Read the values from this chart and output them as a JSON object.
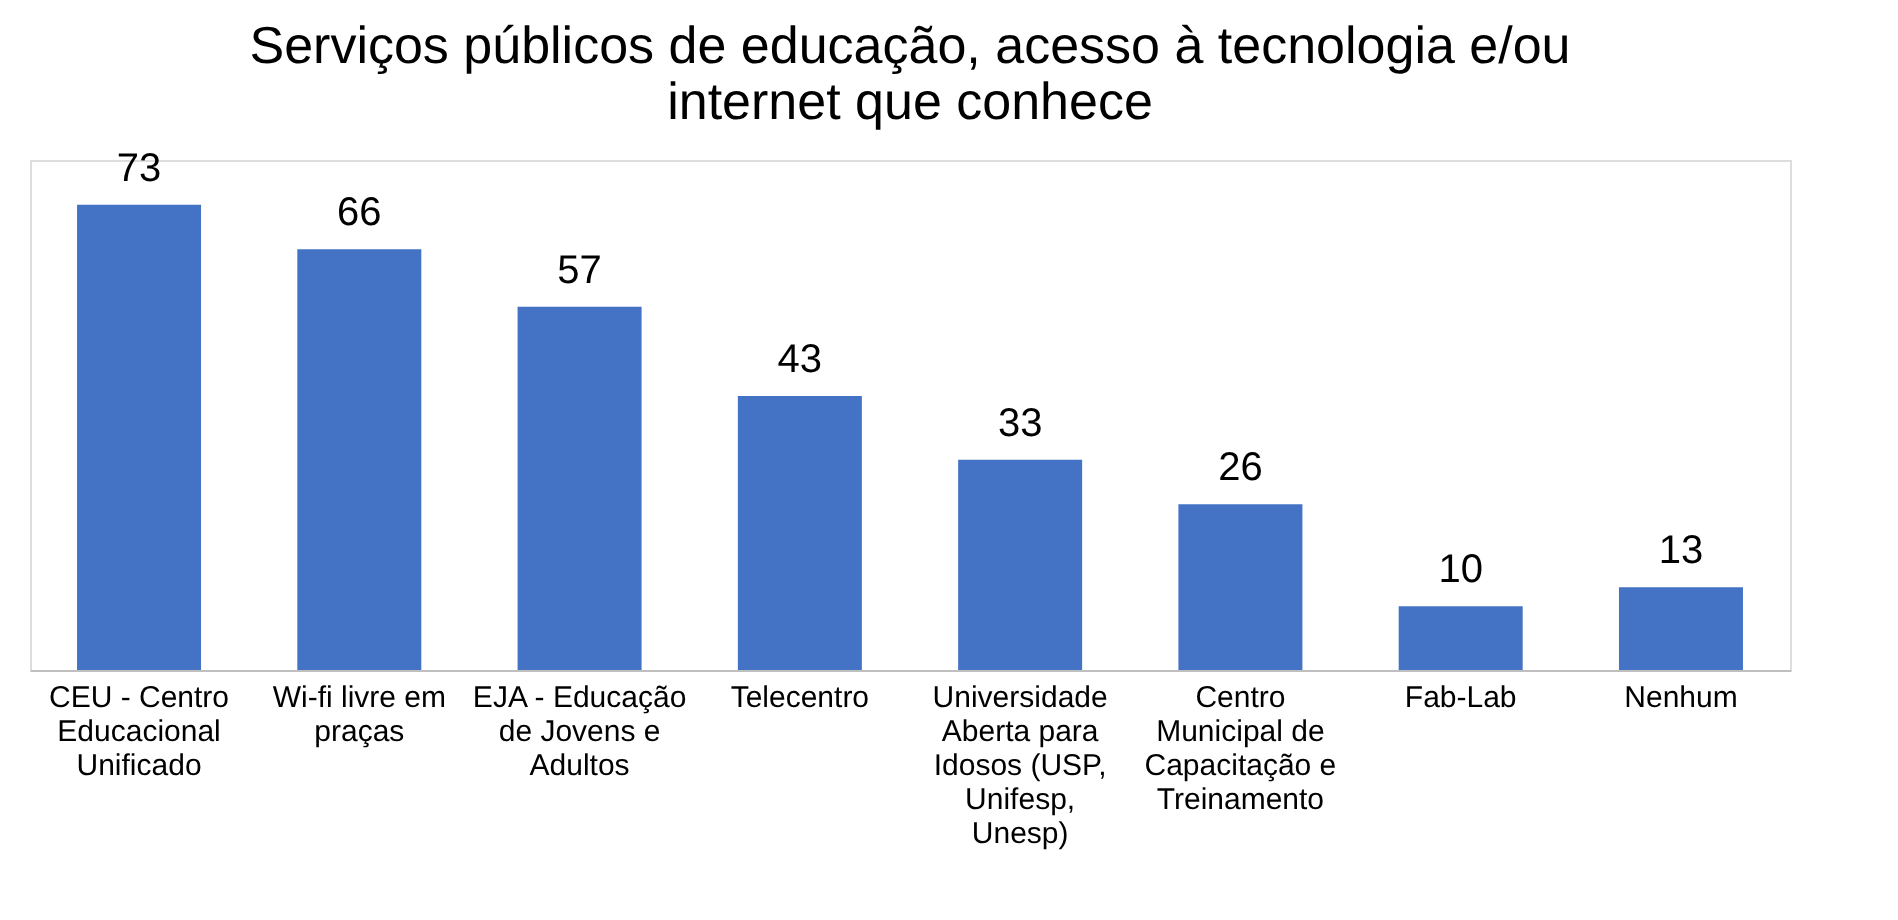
{
  "chart_data": {
    "type": "bar",
    "title": "Serviços públicos de educação, acesso à tecnologia e/ou internet que conhece",
    "categories": [
      "CEU - Centro Educacional Unificado",
      "Wi-fi livre em praças",
      "EJA - Educação de Jovens e Adultos",
      "Telecentro",
      "Universidade Aberta para Idosos (USP, Unifesp, Unesp)",
      "Centro Municipal de Capacitação e Treinamento",
      "Fab-Lab",
      "Nenhum"
    ],
    "values": [
      73,
      66,
      57,
      43,
      33,
      26,
      10,
      13
    ],
    "color": "#4472c4",
    "data_labels": true,
    "grid": false
  }
}
